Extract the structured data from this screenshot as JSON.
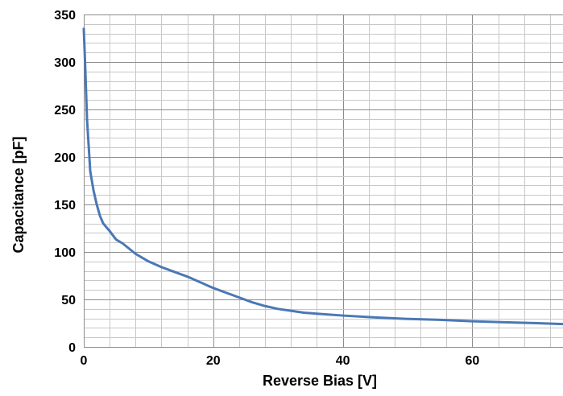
{
  "chart_data": {
    "type": "line",
    "title": "",
    "xlabel": "Reverse Bias [V]",
    "ylabel": "Capacitance [pF]",
    "xlim": [
      0,
      74
    ],
    "ylim": [
      0,
      350
    ],
    "x_major_ticks": [
      0,
      20,
      40,
      60
    ],
    "x_minor_step": 4,
    "y_major_ticks": [
      0,
      50,
      100,
      150,
      200,
      250,
      300,
      350
    ],
    "y_minor_step": 10,
    "grid": true,
    "legend": "none",
    "series": [
      {
        "color": "#4a78b5",
        "x": [
          0,
          0.2,
          0.5,
          1,
          1.5,
          2,
          2.5,
          3,
          4,
          5,
          6,
          8,
          10,
          12,
          14,
          16,
          18,
          20,
          22,
          24,
          26,
          28,
          30,
          32,
          34,
          36,
          40,
          45,
          50,
          55,
          60,
          65,
          70,
          74
        ],
        "y": [
          335,
          300,
          240,
          185,
          165,
          150,
          138,
          130,
          122,
          113,
          109,
          98,
          90,
          84,
          79,
          74,
          68,
          62,
          57,
          52,
          47,
          43,
          40,
          38,
          36,
          35,
          33,
          31,
          29.5,
          28.5,
          27,
          26,
          25,
          24
        ]
      }
    ]
  }
}
